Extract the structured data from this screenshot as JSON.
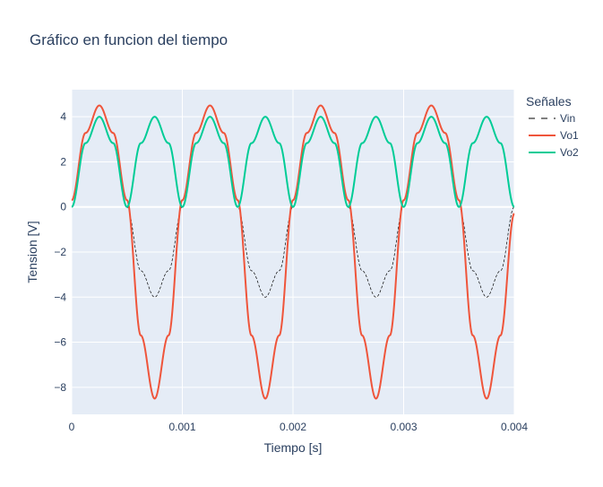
{
  "chart_data": {
    "type": "line",
    "title": "Gráfico en funcion del tiempo",
    "xlabel": "Tiempo [s]",
    "ylabel": "Tension [V]",
    "xlim": [
      0,
      0.004
    ],
    "ylim": [
      -9.2,
      5.2
    ],
    "xticks": [
      0,
      0.001,
      0.002,
      0.003,
      0.004
    ],
    "xtick_labels": [
      "0",
      "0.001",
      "0.002",
      "0.003",
      "0.004"
    ],
    "yticks": [
      4,
      2,
      0,
      -2,
      -4,
      -6,
      -8
    ],
    "ytick_labels": [
      "4",
      "2",
      "0",
      "−2",
      "−4",
      "−6",
      "−8"
    ],
    "grid": true,
    "legend": {
      "title": "Señales",
      "placement": "right"
    },
    "series": [
      {
        "name": "Vin",
        "color": "#000000",
        "dash": "dash",
        "x": [
          0,
          0.000125,
          0.00025,
          0.000375,
          0.0005,
          0.000625,
          0.00075,
          0.000875,
          0.001,
          0.001125,
          0.00125,
          0.001375,
          0.0015,
          0.001625,
          0.00175,
          0.001875,
          0.002,
          0.002125,
          0.00225,
          0.002375,
          0.0025,
          0.002625,
          0.00275,
          0.002875,
          0.003,
          0.003125,
          0.00325,
          0.003375,
          0.0035,
          0.003625,
          0.00375,
          0.003875,
          0.004
        ],
        "y": [
          0,
          2.83,
          4,
          2.83,
          0,
          -2.83,
          -4,
          -2.83,
          0,
          2.83,
          4,
          2.83,
          0,
          -2.83,
          -4,
          -2.83,
          0,
          2.83,
          4,
          2.83,
          0,
          -2.83,
          -4,
          -2.83,
          0,
          2.83,
          4,
          2.83,
          0,
          -2.83,
          -4,
          -2.83,
          0
        ]
      },
      {
        "name": "Vo1",
        "color": "#ef553b",
        "dash": "solid",
        "x": [
          0,
          0.000125,
          0.00025,
          0.000375,
          0.0005,
          0.000625,
          0.00075,
          0.000875,
          0.001,
          0.001125,
          0.00125,
          0.001375,
          0.0015,
          0.001625,
          0.00175,
          0.001875,
          0.002,
          0.002125,
          0.00225,
          0.002375,
          0.0025,
          0.002625,
          0.00275,
          0.002875,
          0.003,
          0.003125,
          0.00325,
          0.003375,
          0.0035,
          0.003625,
          0.00375,
          0.003875,
          0.004
        ],
        "y": [
          0.3,
          3.28,
          4.5,
          3.28,
          0.3,
          -5.7,
          -8.5,
          -5.7,
          0.3,
          3.28,
          4.5,
          3.28,
          0.3,
          -5.7,
          -8.5,
          -5.7,
          0.3,
          3.28,
          4.5,
          3.28,
          0.3,
          -5.7,
          -8.5,
          -5.7,
          0.3,
          3.28,
          4.5,
          3.28,
          0.3,
          -5.7,
          -8.5,
          -5.7,
          -0.3
        ]
      },
      {
        "name": "Vo2",
        "color": "#00cc96",
        "dash": "solid",
        "x": [
          0,
          0.000125,
          0.00025,
          0.000375,
          0.0005,
          0.000625,
          0.00075,
          0.000875,
          0.001,
          0.001125,
          0.00125,
          0.001375,
          0.0015,
          0.001625,
          0.00175,
          0.001875,
          0.002,
          0.002125,
          0.00225,
          0.002375,
          0.0025,
          0.002625,
          0.00275,
          0.002875,
          0.003,
          0.003125,
          0.00325,
          0.003375,
          0.0035,
          0.003625,
          0.00375,
          0.003875,
          0.004
        ],
        "y": [
          0,
          2.83,
          4,
          2.83,
          0,
          2.83,
          4,
          2.83,
          0,
          2.83,
          4,
          2.83,
          0,
          2.83,
          4,
          2.83,
          0,
          2.83,
          4,
          2.83,
          0,
          2.83,
          4,
          2.83,
          0,
          2.83,
          4,
          2.83,
          0,
          2.83,
          4,
          2.83,
          0
        ]
      }
    ]
  }
}
